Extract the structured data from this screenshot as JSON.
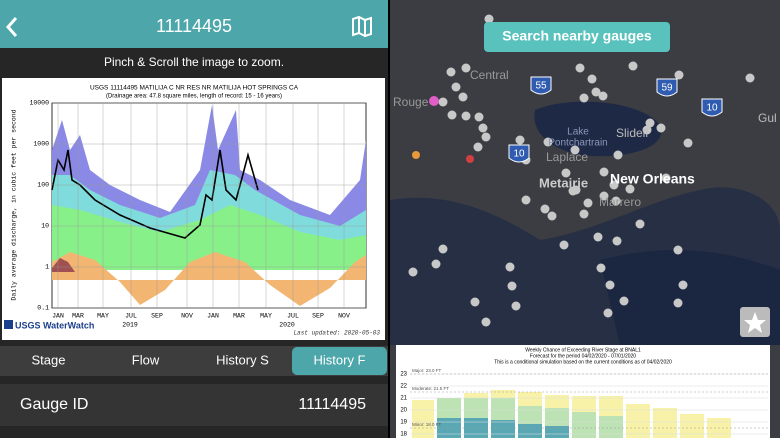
{
  "left": {
    "header_title": "11114495",
    "hint": "Pinch & Scroll the image to zoom.",
    "hydrograph": {
      "title": "USGS 11114495 MATILIJA C NR RES NR MATILIJA HOT SPRINGS CA",
      "subtitle": "(Drainage area: 47.8 square miles, length of record: 15 - 16 years)",
      "y_label": "Daily average discharge, in cubic feet per second",
      "y_ticks": [
        "0.1",
        "1",
        "10",
        "100",
        "1000",
        "10000"
      ],
      "x_ticks": [
        "JAN",
        "MAR",
        "MAY",
        "JUL",
        "SEP",
        "NOV",
        "JAN",
        "MAR",
        "MAY",
        "JUL",
        "SEP",
        "NOV"
      ],
      "years": [
        "2019",
        "2020"
      ],
      "logo": "USGS WaterWatch",
      "updated": "Last updated: 2020-05-03"
    },
    "tabs": [
      "Stage",
      "Flow",
      "History S",
      "History F"
    ],
    "active_tab": 3,
    "info": {
      "label": "Gauge ID",
      "value": "11114495"
    }
  },
  "right": {
    "search_button": "Search nearby gauges",
    "map_labels": [
      "Central",
      "Rouge",
      "55",
      "59",
      "10",
      "Gul",
      "Lake",
      "Pontchartrain",
      "Slidell",
      "10",
      "Laplace",
      "New Orleans",
      "Metairie",
      "Marrero"
    ],
    "forecast": {
      "title": "Weekly Chance of Exceeding River Stage at BNAL1",
      "subtitle": "Forecast for the period 04/02/2020 - 07/01/2020",
      "note": "This is a conditional simulation based on the current conditions as of 04/02/2020",
      "y_ticks": [
        "23",
        "22",
        "21",
        "20",
        "19",
        "18"
      ],
      "levels": [
        "Major: 23.0 FT",
        "Moderate: 21.5 FT",
        "Minor: 18.0 FT"
      ]
    }
  }
}
